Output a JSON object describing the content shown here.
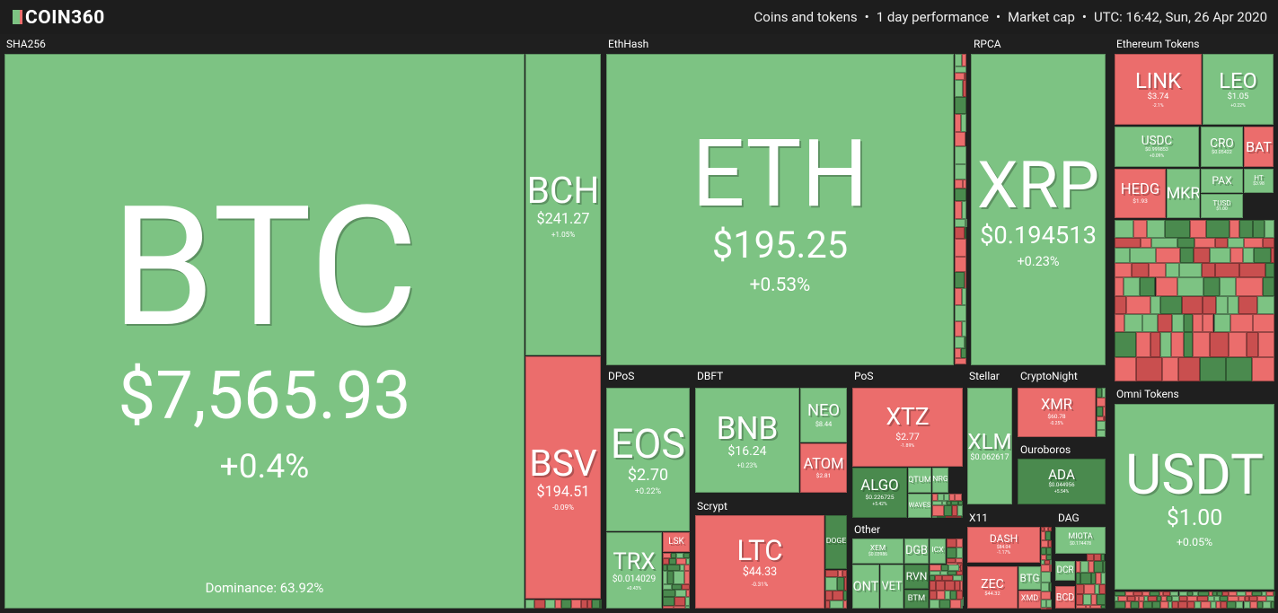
{
  "header": {
    "logo": "COIN360",
    "info": [
      "Coins and tokens",
      "1 day performance",
      "Market cap",
      "UTC: 16:42, Sun, 26 Apr 2020"
    ]
  },
  "groups": [
    {
      "label": "SHA256",
      "tiles": [
        {
          "symbol": "BTC",
          "price": "$7,565.93",
          "change": "+0.4%",
          "note": "Dominance: 63.92%",
          "color": "#7dc383"
        },
        {
          "symbol": "BCH",
          "price": "$241.27",
          "change": "+1.05%",
          "color": "#7dc383"
        },
        {
          "symbol": "BSV",
          "price": "$194.51",
          "change": "-0.09%",
          "color": "#eb6d6c"
        }
      ]
    },
    {
      "label": "EthHash",
      "tiles": [
        {
          "symbol": "ETH",
          "price": "$195.25",
          "change": "+0.53%",
          "color": "#7dc383"
        }
      ]
    },
    {
      "label": "RPCA",
      "tiles": [
        {
          "symbol": "XRP",
          "price": "$0.194513",
          "change": "+0.23%",
          "color": "#7dc383"
        }
      ]
    },
    {
      "label": "Ethereum Tokens",
      "tiles": [
        {
          "symbol": "LINK",
          "price": "$3.74",
          "change": "-2.1%",
          "color": "#eb6d6c"
        },
        {
          "symbol": "LEO",
          "price": "$1.05",
          "change": "+0.22%",
          "color": "#7dc383"
        },
        {
          "symbol": "USDC",
          "price": "$0.999853",
          "change": "+0.09%",
          "color": "#7dc383"
        },
        {
          "symbol": "CRO",
          "price": "$0.05422",
          "color": "#7dc383"
        },
        {
          "symbol": "BAT",
          "color": "#eb6d6c"
        },
        {
          "symbol": "HEDG",
          "price": "$1.93",
          "color": "#eb6d6c"
        },
        {
          "symbol": "MKR",
          "color": "#7dc383"
        },
        {
          "symbol": "PAX",
          "color": "#7dc383"
        },
        {
          "symbol": "HT",
          "price": "$3.98",
          "color": "#7dc383"
        },
        {
          "symbol": "TUSD",
          "price": "$1.00",
          "color": "#7dc383"
        }
      ]
    },
    {
      "label": "Omni Tokens",
      "tiles": [
        {
          "symbol": "USDT",
          "price": "$1.00",
          "change": "+0.05%",
          "color": "#7dc383"
        }
      ]
    },
    {
      "label": "DPoS",
      "tiles": [
        {
          "symbol": "EOS",
          "price": "$2.70",
          "change": "+0.22%",
          "color": "#7dc383"
        },
        {
          "symbol": "TRX",
          "price": "$0.014029",
          "change": "+0.43%",
          "color": "#7dc383"
        },
        {
          "symbol": "LSK",
          "color": "#eb6d6c"
        }
      ]
    },
    {
      "label": "DBFT",
      "tiles": [
        {
          "symbol": "BNB",
          "price": "$16.24",
          "change": "+0.23%",
          "color": "#7dc383"
        },
        {
          "symbol": "NEO",
          "price": "$8.44",
          "color": "#7dc383"
        },
        {
          "symbol": "ATOM",
          "price": "$2.81",
          "color": "#eb6d6c"
        }
      ]
    },
    {
      "label": "Scrypt",
      "tiles": [
        {
          "symbol": "LTC",
          "price": "$44.33",
          "change": "-0.31%",
          "color": "#eb6d6c"
        },
        {
          "symbol": "DOGE",
          "color": "#4a8a4e"
        }
      ]
    },
    {
      "label": "PoS",
      "tiles": [
        {
          "symbol": "XTZ",
          "price": "$2.77",
          "change": "-1.89%",
          "color": "#eb6d6c"
        },
        {
          "symbol": "ALGO",
          "price": "$0.226725",
          "change": "+5.42%",
          "color": "#4a8a4e"
        },
        {
          "symbol": "QTUM",
          "color": "#7dc383"
        },
        {
          "symbol": "NRG",
          "color": "#7dc383"
        },
        {
          "symbol": "WAVES",
          "color": "#7dc383"
        }
      ]
    },
    {
      "label": "Other",
      "tiles": [
        {
          "symbol": "XEM",
          "price": "$0.03986",
          "color": "#7dc383"
        },
        {
          "symbol": "DGB",
          "color": "#7dc383"
        },
        {
          "symbol": "ICX",
          "color": "#7dc383"
        },
        {
          "symbol": "ONT",
          "color": "#7dc383"
        },
        {
          "symbol": "VET",
          "color": "#7dc383"
        },
        {
          "symbol": "RVN",
          "color": "#4a8a4e"
        },
        {
          "symbol": "BTM",
          "color": "#4a8a4e"
        }
      ]
    },
    {
      "label": "Stellar",
      "tiles": [
        {
          "symbol": "XLM",
          "price": "$0.062617",
          "color": "#7dc383"
        }
      ]
    },
    {
      "label": "CryptoNight",
      "tiles": [
        {
          "symbol": "XMR",
          "price": "$60.78",
          "change": "-0.25%",
          "color": "#eb6d6c"
        }
      ]
    },
    {
      "label": "Ouroboros",
      "tiles": [
        {
          "symbol": "ADA",
          "price": "$0.044956",
          "change": "+5.54%",
          "color": "#4a8a4e"
        }
      ]
    },
    {
      "label": "X11",
      "tiles": [
        {
          "symbol": "DASH",
          "price": "$84.04",
          "change": "-1.17%",
          "color": "#eb6d6c"
        },
        {
          "symbol": "ZEC",
          "price": "$44.32",
          "color": "#eb6d6c"
        },
        {
          "symbol": "BTG",
          "color": "#7dc383"
        },
        {
          "symbol": "XMD",
          "color": "#eb6d6c"
        }
      ]
    },
    {
      "label": "DAG",
      "tiles": [
        {
          "symbol": "MIOTA",
          "price": "$0.174478",
          "color": "#7dc383"
        },
        {
          "symbol": "DCR",
          "color": "#7dc383"
        },
        {
          "symbol": "BCD",
          "color": "#eb6d6c"
        }
      ]
    }
  ]
}
